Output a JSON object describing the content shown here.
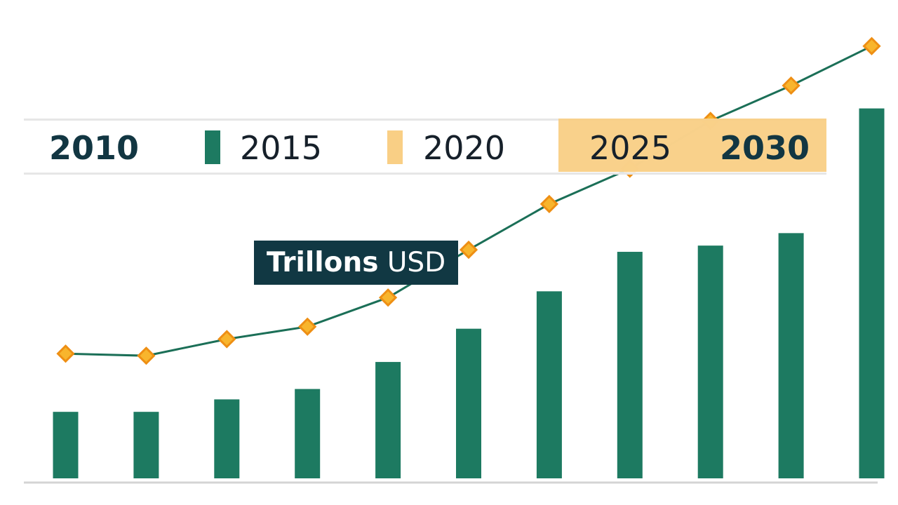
{
  "chart_data": {
    "type": "bar",
    "categories": [
      "",
      "",
      "",
      "",
      "",
      "",
      "",
      "",
      "",
      "",
      ""
    ],
    "series": [
      {
        "values": [
          1.6,
          1.6,
          1.9,
          2.15,
          2.8,
          3.6,
          4.5,
          5.45,
          5.6,
          5.9,
          8.9
        ]
      },
      {
        "values": [
          3.0,
          2.95,
          3.35,
          3.65,
          4.35,
          5.5,
          6.6,
          7.45,
          8.6,
          9.45,
          10.4
        ]
      }
    ],
    "legend": {
      "items": [
        "2010",
        "2015",
        "2020",
        "2025",
        "2030"
      ]
    },
    "annotation": {
      "strong": "Trillons",
      "light": "USD"
    },
    "ylim": [
      0,
      10.8
    ],
    "grid": false,
    "colors": {
      "bars": "#1d7a61",
      "line": "#1b6f57",
      "marker_fill": "#f8b52d",
      "marker_stroke": "#ee8f14",
      "legend_highlight": "#f9cf85",
      "baseline": "#d4d4d4",
      "units_bg": "#113843"
    }
  }
}
